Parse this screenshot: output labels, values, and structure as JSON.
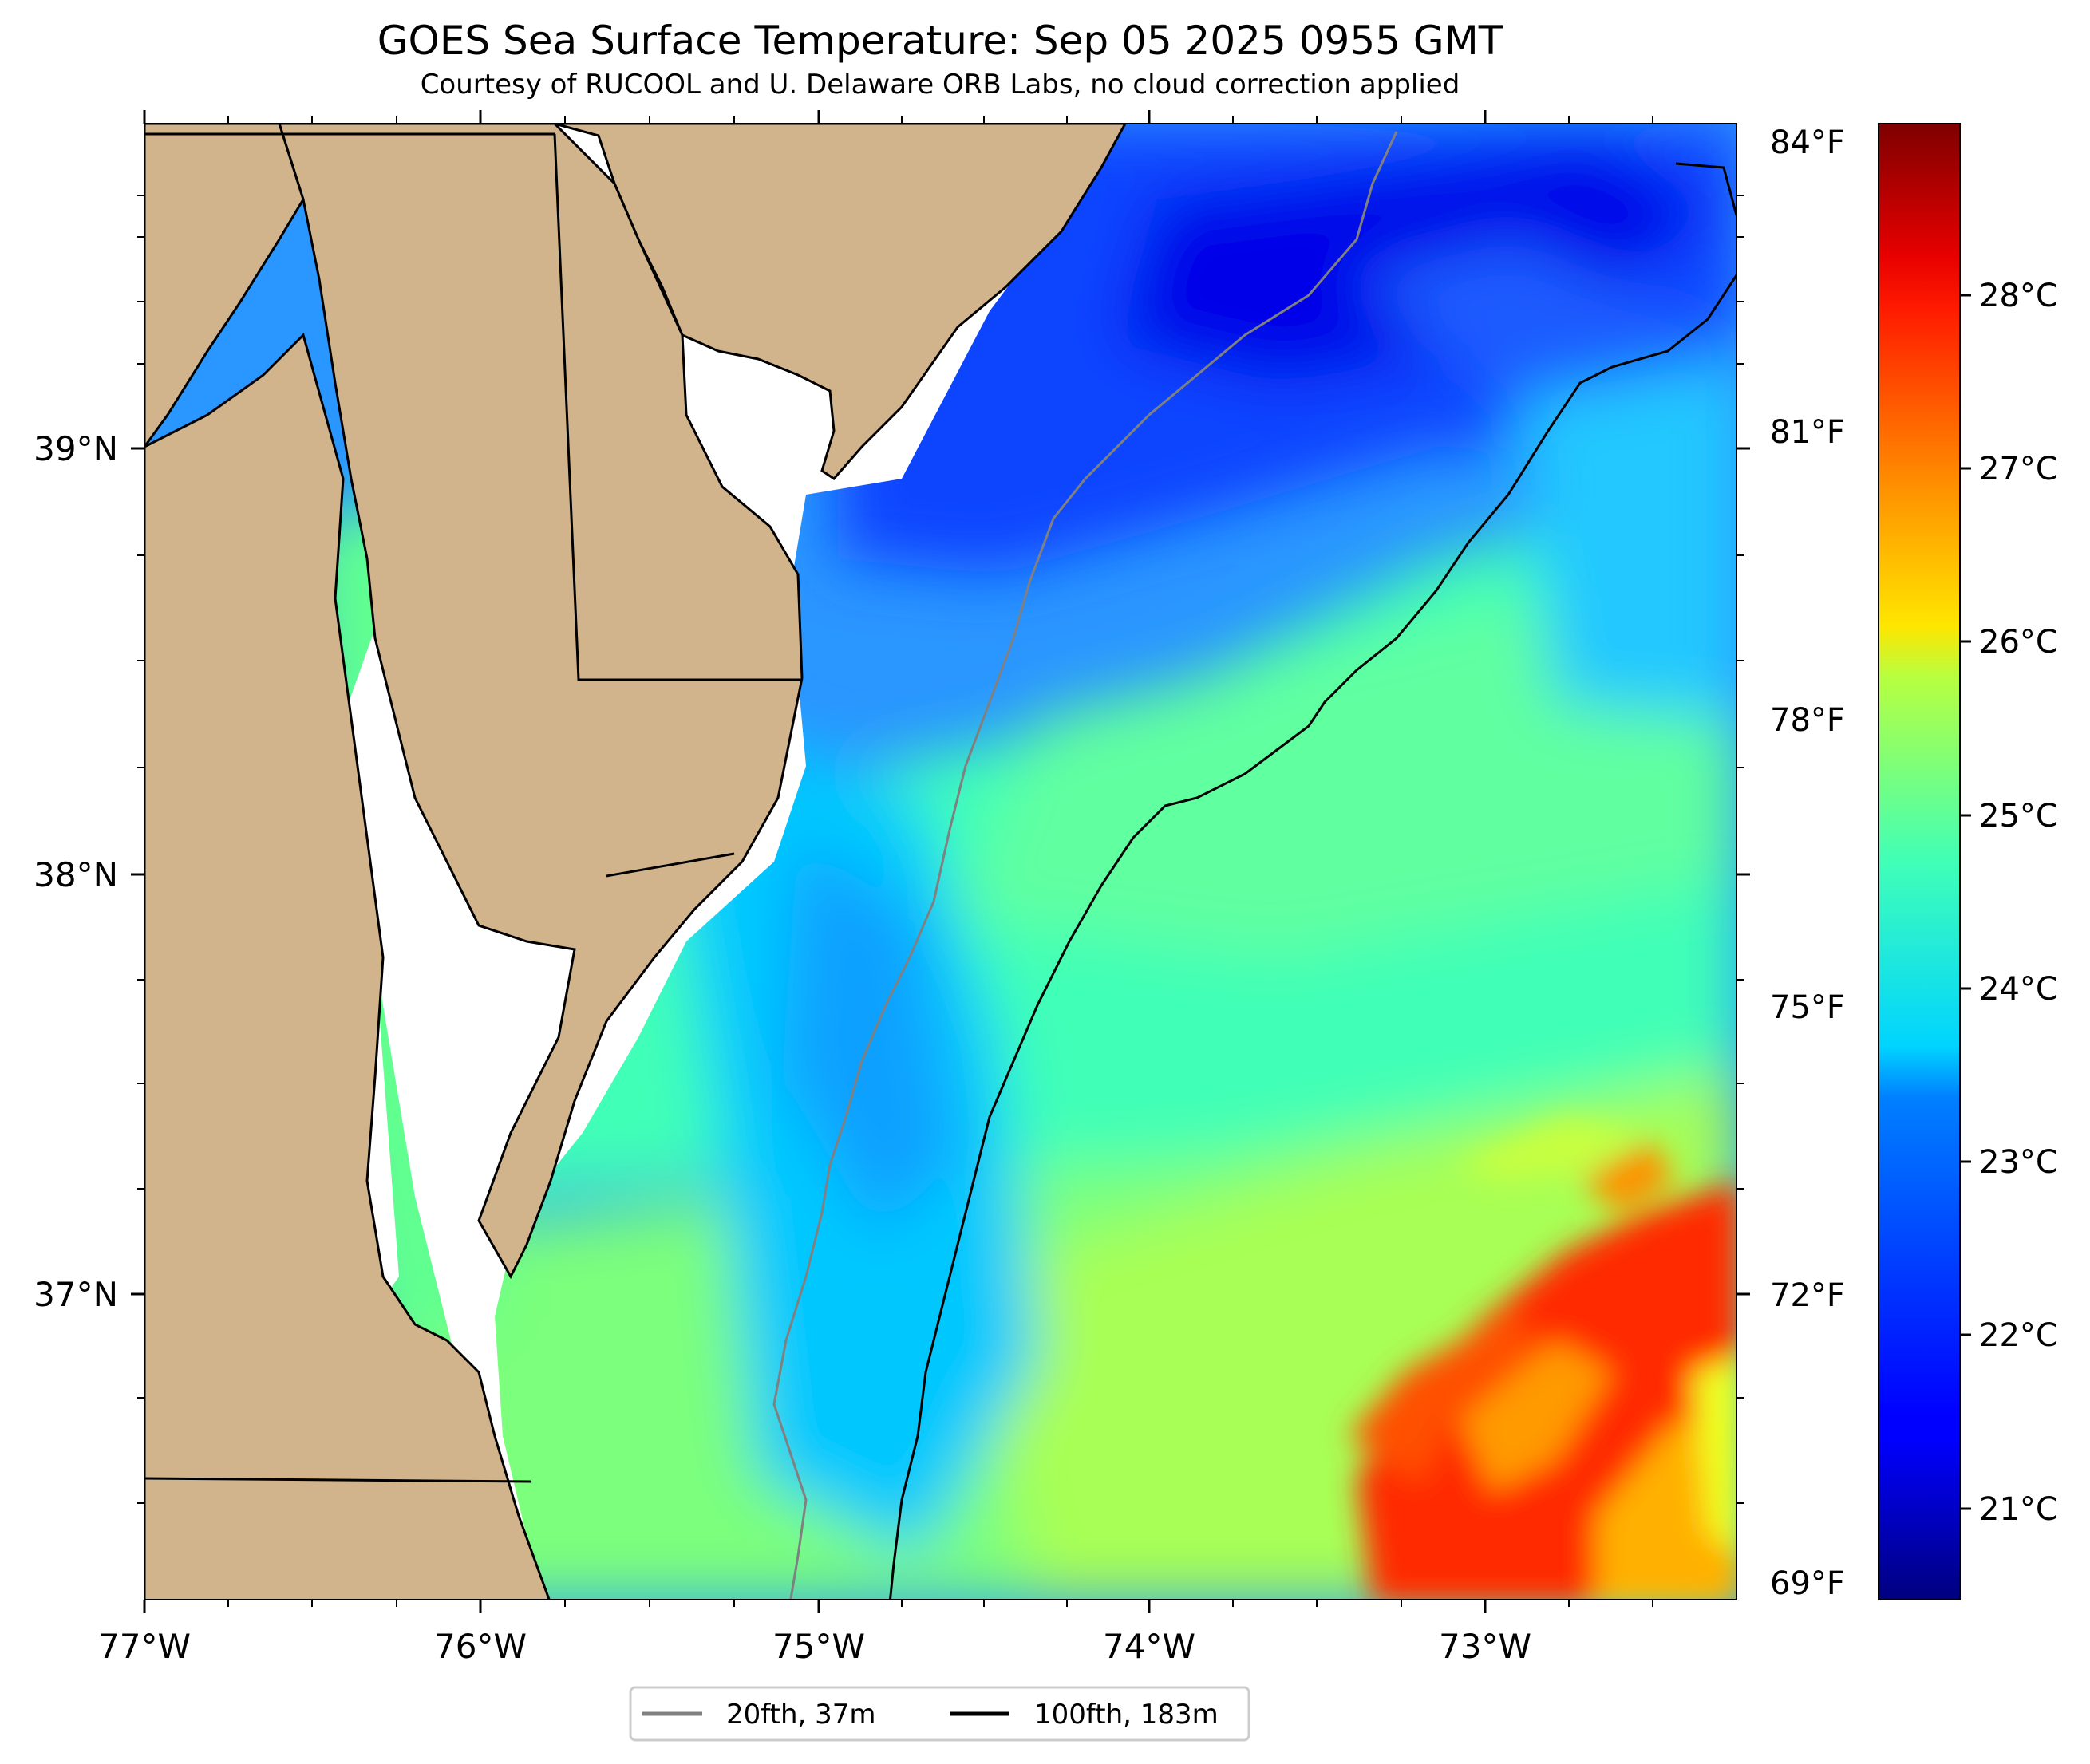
{
  "header": {
    "title": "GOES Sea Surface Temperature: Sep 05 2025 0955 GMT",
    "subtitle": "Courtesy of RUCOOL and U. Delaware ORB Labs, no cloud correction applied"
  },
  "axes": {
    "lon_labels": [
      "77°W",
      "76°W",
      "75°W",
      "74°W",
      "73°W"
    ],
    "lat_labels": [
      "39°N",
      "38°N",
      "37°N"
    ],
    "lon_range": [
      -77.0,
      -72.3
    ],
    "lat_range": [
      36.3,
      39.75
    ]
  },
  "colorbar": {
    "celsius_labels": [
      "28°C",
      "27°C",
      "26°C",
      "25°C",
      "24°C",
      "23°C",
      "22°C",
      "21°C"
    ],
    "celsius_values": [
      28,
      27,
      26,
      25,
      24,
      23,
      22,
      21
    ],
    "fahrenheit_labels": [
      "84°F",
      "81°F",
      "78°F",
      "75°F",
      "72°F",
      "69°F"
    ],
    "fahrenheit_values": [
      84,
      81,
      78,
      75,
      72,
      69
    ],
    "range_c": [
      20.5,
      29.0
    ],
    "colormap": "jet"
  },
  "legend": {
    "entries": [
      {
        "label": "20fth, 37m",
        "color": "#808080"
      },
      {
        "label": "100fth, 183m",
        "color": "#000000"
      }
    ]
  },
  "colors": {
    "land": "#d2b48c",
    "nodata": "#ffffff",
    "coastline": "#000000",
    "isobath_20fth": "#808080",
    "isobath_100fth": "#000000"
  }
}
